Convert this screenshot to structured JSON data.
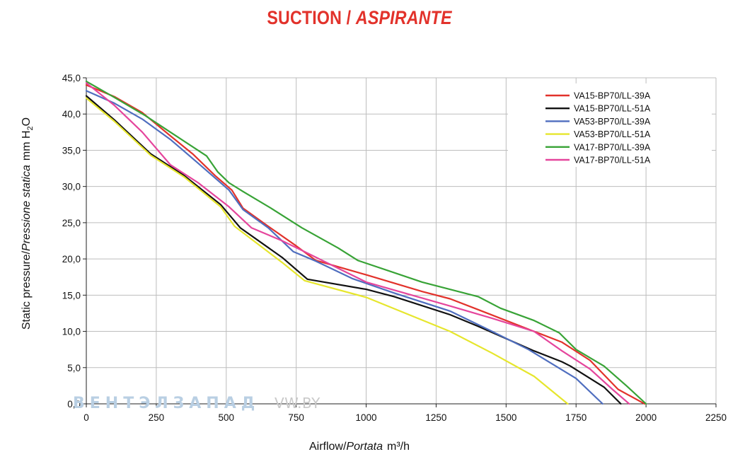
{
  "chart_data": {
    "type": "line",
    "title_main": "SUCTION / ",
    "title_italic": "ASPIRANTE",
    "xlabel_main": "Airflow/",
    "xlabel_italic": "Portata",
    "xlabel_unit": "m³/h",
    "ylabel_main": "Static pressure/",
    "ylabel_italic": "Pressione statica",
    "ylabel_unit_pre": "mm H",
    "ylabel_unit_sub": "2",
    "ylabel_unit_post": "O",
    "xlim": [
      0,
      2250
    ],
    "ylim": [
      0,
      45
    ],
    "x_ticks": [
      "0",
      "250",
      "500",
      "750",
      "1000",
      "1250",
      "1500",
      "1750",
      "2000",
      "2250"
    ],
    "y_ticks": [
      "0,0",
      "5,0",
      "10,0",
      "15,0",
      "20,0",
      "25,0",
      "30,0",
      "35,0",
      "40,0",
      "45,0"
    ],
    "grid": true,
    "legend_position": "top-right",
    "watermark_main": "ВЕНТЭЛЗАПАД",
    "watermark_site": "VW.BY",
    "series": [
      {
        "name": "VA15-BP70/LL-39A",
        "color": "#e2322b",
        "points": [
          [
            0,
            44
          ],
          [
            100,
            42.4
          ],
          [
            200,
            40.2
          ],
          [
            300,
            37
          ],
          [
            380,
            34.5
          ],
          [
            460,
            31.5
          ],
          [
            520,
            29.5
          ],
          [
            560,
            27
          ],
          [
            650,
            24.5
          ],
          [
            750,
            21.8
          ],
          [
            820,
            19.8
          ],
          [
            1000,
            17.8
          ],
          [
            1200,
            15.5
          ],
          [
            1300,
            14.5
          ],
          [
            1400,
            13
          ],
          [
            1500,
            11.5
          ],
          [
            1600,
            10
          ],
          [
            1700,
            8.5
          ],
          [
            1800,
            6
          ],
          [
            1900,
            2
          ],
          [
            1995,
            0
          ]
        ]
      },
      {
        "name": "VA15-BP70/LL-51A",
        "color": "#111111",
        "points": [
          [
            0,
            42.5
          ],
          [
            100,
            39.2
          ],
          [
            230,
            34.5
          ],
          [
            350,
            31.5
          ],
          [
            480,
            27.5
          ],
          [
            550,
            24.3
          ],
          [
            700,
            20.2
          ],
          [
            790,
            17.2
          ],
          [
            1000,
            15.8
          ],
          [
            1100,
            14.8
          ],
          [
            1300,
            12.3
          ],
          [
            1400,
            10.7
          ],
          [
            1500,
            9
          ],
          [
            1600,
            7.3
          ],
          [
            1700,
            5.8
          ],
          [
            1730,
            5.2
          ],
          [
            1850,
            2.3
          ],
          [
            1910,
            0
          ]
        ]
      },
      {
        "name": "VA53-BP70/LL-39A",
        "color": "#4f6ebf",
        "points": [
          [
            0,
            43.2
          ],
          [
            100,
            41.5
          ],
          [
            200,
            39.3
          ],
          [
            300,
            36.5
          ],
          [
            400,
            33.2
          ],
          [
            510,
            29.5
          ],
          [
            560,
            26.8
          ],
          [
            650,
            24.3
          ],
          [
            740,
            21
          ],
          [
            820,
            19.7
          ],
          [
            950,
            17.3
          ],
          [
            1100,
            15.3
          ],
          [
            1300,
            12.8
          ],
          [
            1450,
            10
          ],
          [
            1580,
            7.5
          ],
          [
            1750,
            3.5
          ],
          [
            1845,
            0
          ]
        ]
      },
      {
        "name": "VA53-BP70/LL-51A",
        "color": "#e6e62d",
        "points": [
          [
            0,
            42.2
          ],
          [
            100,
            39
          ],
          [
            230,
            34.3
          ],
          [
            350,
            31.3
          ],
          [
            480,
            27.2
          ],
          [
            530,
            24.5
          ],
          [
            700,
            19.5
          ],
          [
            780,
            17
          ],
          [
            1000,
            14.7
          ],
          [
            1300,
            10
          ],
          [
            1450,
            7
          ],
          [
            1600,
            3.8
          ],
          [
            1720,
            0
          ]
        ]
      },
      {
        "name": "VA17-BP70/LL-39A",
        "color": "#38a336",
        "points": [
          [
            0,
            44.5
          ],
          [
            100,
            42.3
          ],
          [
            210,
            39.8
          ],
          [
            300,
            37.5
          ],
          [
            430,
            34.2
          ],
          [
            470,
            32
          ],
          [
            510,
            30.5
          ],
          [
            560,
            29.3
          ],
          [
            660,
            27
          ],
          [
            770,
            24.3
          ],
          [
            900,
            21.5
          ],
          [
            970,
            19.8
          ],
          [
            1200,
            16.8
          ],
          [
            1400,
            14.8
          ],
          [
            1480,
            13.2
          ],
          [
            1600,
            11.5
          ],
          [
            1690,
            9.8
          ],
          [
            1750,
            7.5
          ],
          [
            1850,
            5.2
          ],
          [
            1930,
            2.5
          ],
          [
            2000,
            0
          ]
        ]
      },
      {
        "name": "VA17-BP70/LL-51A",
        "color": "#e5459c",
        "points": [
          [
            0,
            44.3
          ],
          [
            100,
            41.2
          ],
          [
            200,
            37.5
          ],
          [
            300,
            33
          ],
          [
            400,
            30.5
          ],
          [
            510,
            27.2
          ],
          [
            590,
            24.3
          ],
          [
            700,
            22.5
          ],
          [
            790,
            20.8
          ],
          [
            1000,
            16.8
          ],
          [
            1100,
            15.7
          ],
          [
            1300,
            13.5
          ],
          [
            1450,
            11.8
          ],
          [
            1600,
            10
          ],
          [
            1700,
            7.3
          ],
          [
            1800,
            4.8
          ],
          [
            1880,
            2
          ],
          [
            1940,
            0
          ]
        ]
      }
    ]
  }
}
